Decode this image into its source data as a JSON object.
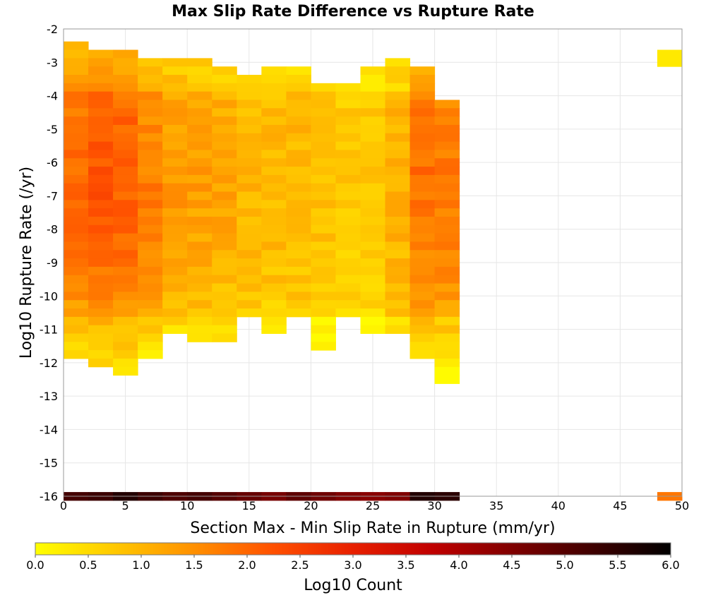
{
  "chart_data": {
    "type": "heatmap",
    "title": "Max Slip Rate Difference vs Rupture Rate",
    "xlabel": "Section Max - Min Slip Rate in Rupture (mm/yr)",
    "ylabel": "Log10 Rupture Rate (/yr)",
    "colorbar_label": "Log10 Count",
    "xlim": [
      0,
      50
    ],
    "ylim": [
      -16,
      -2
    ],
    "x_ticks": [
      "0",
      "5",
      "10",
      "15",
      "20",
      "25",
      "30",
      "35",
      "40",
      "45",
      "50"
    ],
    "y_ticks": [
      "-2",
      "-3",
      "-4",
      "-5",
      "-6",
      "-7",
      "-8",
      "-9",
      "-10",
      "-11",
      "-12",
      "-13",
      "-14",
      "-15",
      "-16"
    ],
    "colorbar_range": [
      0,
      6
    ],
    "colorbar_ticks": [
      "0.0",
      "0.5",
      "1.0",
      "1.5",
      "2.0",
      "2.5",
      "3.0",
      "3.5",
      "4.0",
      "4.5",
      "5.0",
      "5.5",
      "6.0"
    ],
    "colorscale": [
      "#ffff00",
      "#ffc800",
      "#ff9000",
      "#ff5000",
      "#e82000",
      "#c00000",
      "#800000",
      "#400000",
      "#000000"
    ],
    "bin_width_x": 2,
    "bin_height_y": 0.25,
    "x_bin_starts": [
      0,
      2,
      4,
      6,
      8,
      10,
      12,
      14,
      16,
      18,
      20,
      22,
      24,
      26,
      28,
      30
    ],
    "column_profiles": [
      {
        "y_top": -2.5,
        "y_bottom": -11.75,
        "peak": 2.0
      },
      {
        "y_top": -2.75,
        "y_bottom": -12.0,
        "peak": 2.2
      },
      {
        "y_top": -2.75,
        "y_bottom": -12.25,
        "peak": 2.1
      },
      {
        "y_top": -3.0,
        "y_bottom": -11.75,
        "peak": 1.7
      },
      {
        "y_top": -3.0,
        "y_bottom": -11.0,
        "peak": 1.4
      },
      {
        "y_top": -3.0,
        "y_bottom": -11.25,
        "peak": 1.3
      },
      {
        "y_top": -3.25,
        "y_bottom": -11.25,
        "peak": 1.2
      },
      {
        "y_top": -3.5,
        "y_bottom": -10.5,
        "peak": 1.0
      },
      {
        "y_top": -3.25,
        "y_bottom": -11.0,
        "peak": 1.0
      },
      {
        "y_top": -3.25,
        "y_bottom": -10.5,
        "peak": 1.0
      },
      {
        "y_top": -3.75,
        "y_bottom": -11.5,
        "peak": 0.9
      },
      {
        "y_top": -3.75,
        "y_bottom": -10.5,
        "peak": 0.8
      },
      {
        "y_top": -3.25,
        "y_bottom": -11.0,
        "peak": 0.8
      },
      {
        "y_top": -3.0,
        "y_bottom": -11.0,
        "peak": 1.1
      },
      {
        "y_top": -3.25,
        "y_bottom": -11.75,
        "peak": 1.9
      },
      {
        "y_top": -4.25,
        "y_bottom": -12.5,
        "peak": 1.8
      }
    ],
    "bottom_row": {
      "y": -16,
      "values": [
        5.2,
        5.3,
        5.6,
        5.3,
        5.1,
        5.2,
        5.0,
        4.8,
        4.6,
        4.9,
        4.7,
        4.5,
        4.4,
        4.5,
        5.6,
        5.5
      ]
    },
    "outlier_cells": [
      {
        "x": 48,
        "y": -2.75,
        "value": 0.3
      },
      {
        "x": 48,
        "y": -3.0,
        "value": 0.3
      },
      {
        "x": 48,
        "y": -16,
        "value": 1.8
      }
    ]
  }
}
